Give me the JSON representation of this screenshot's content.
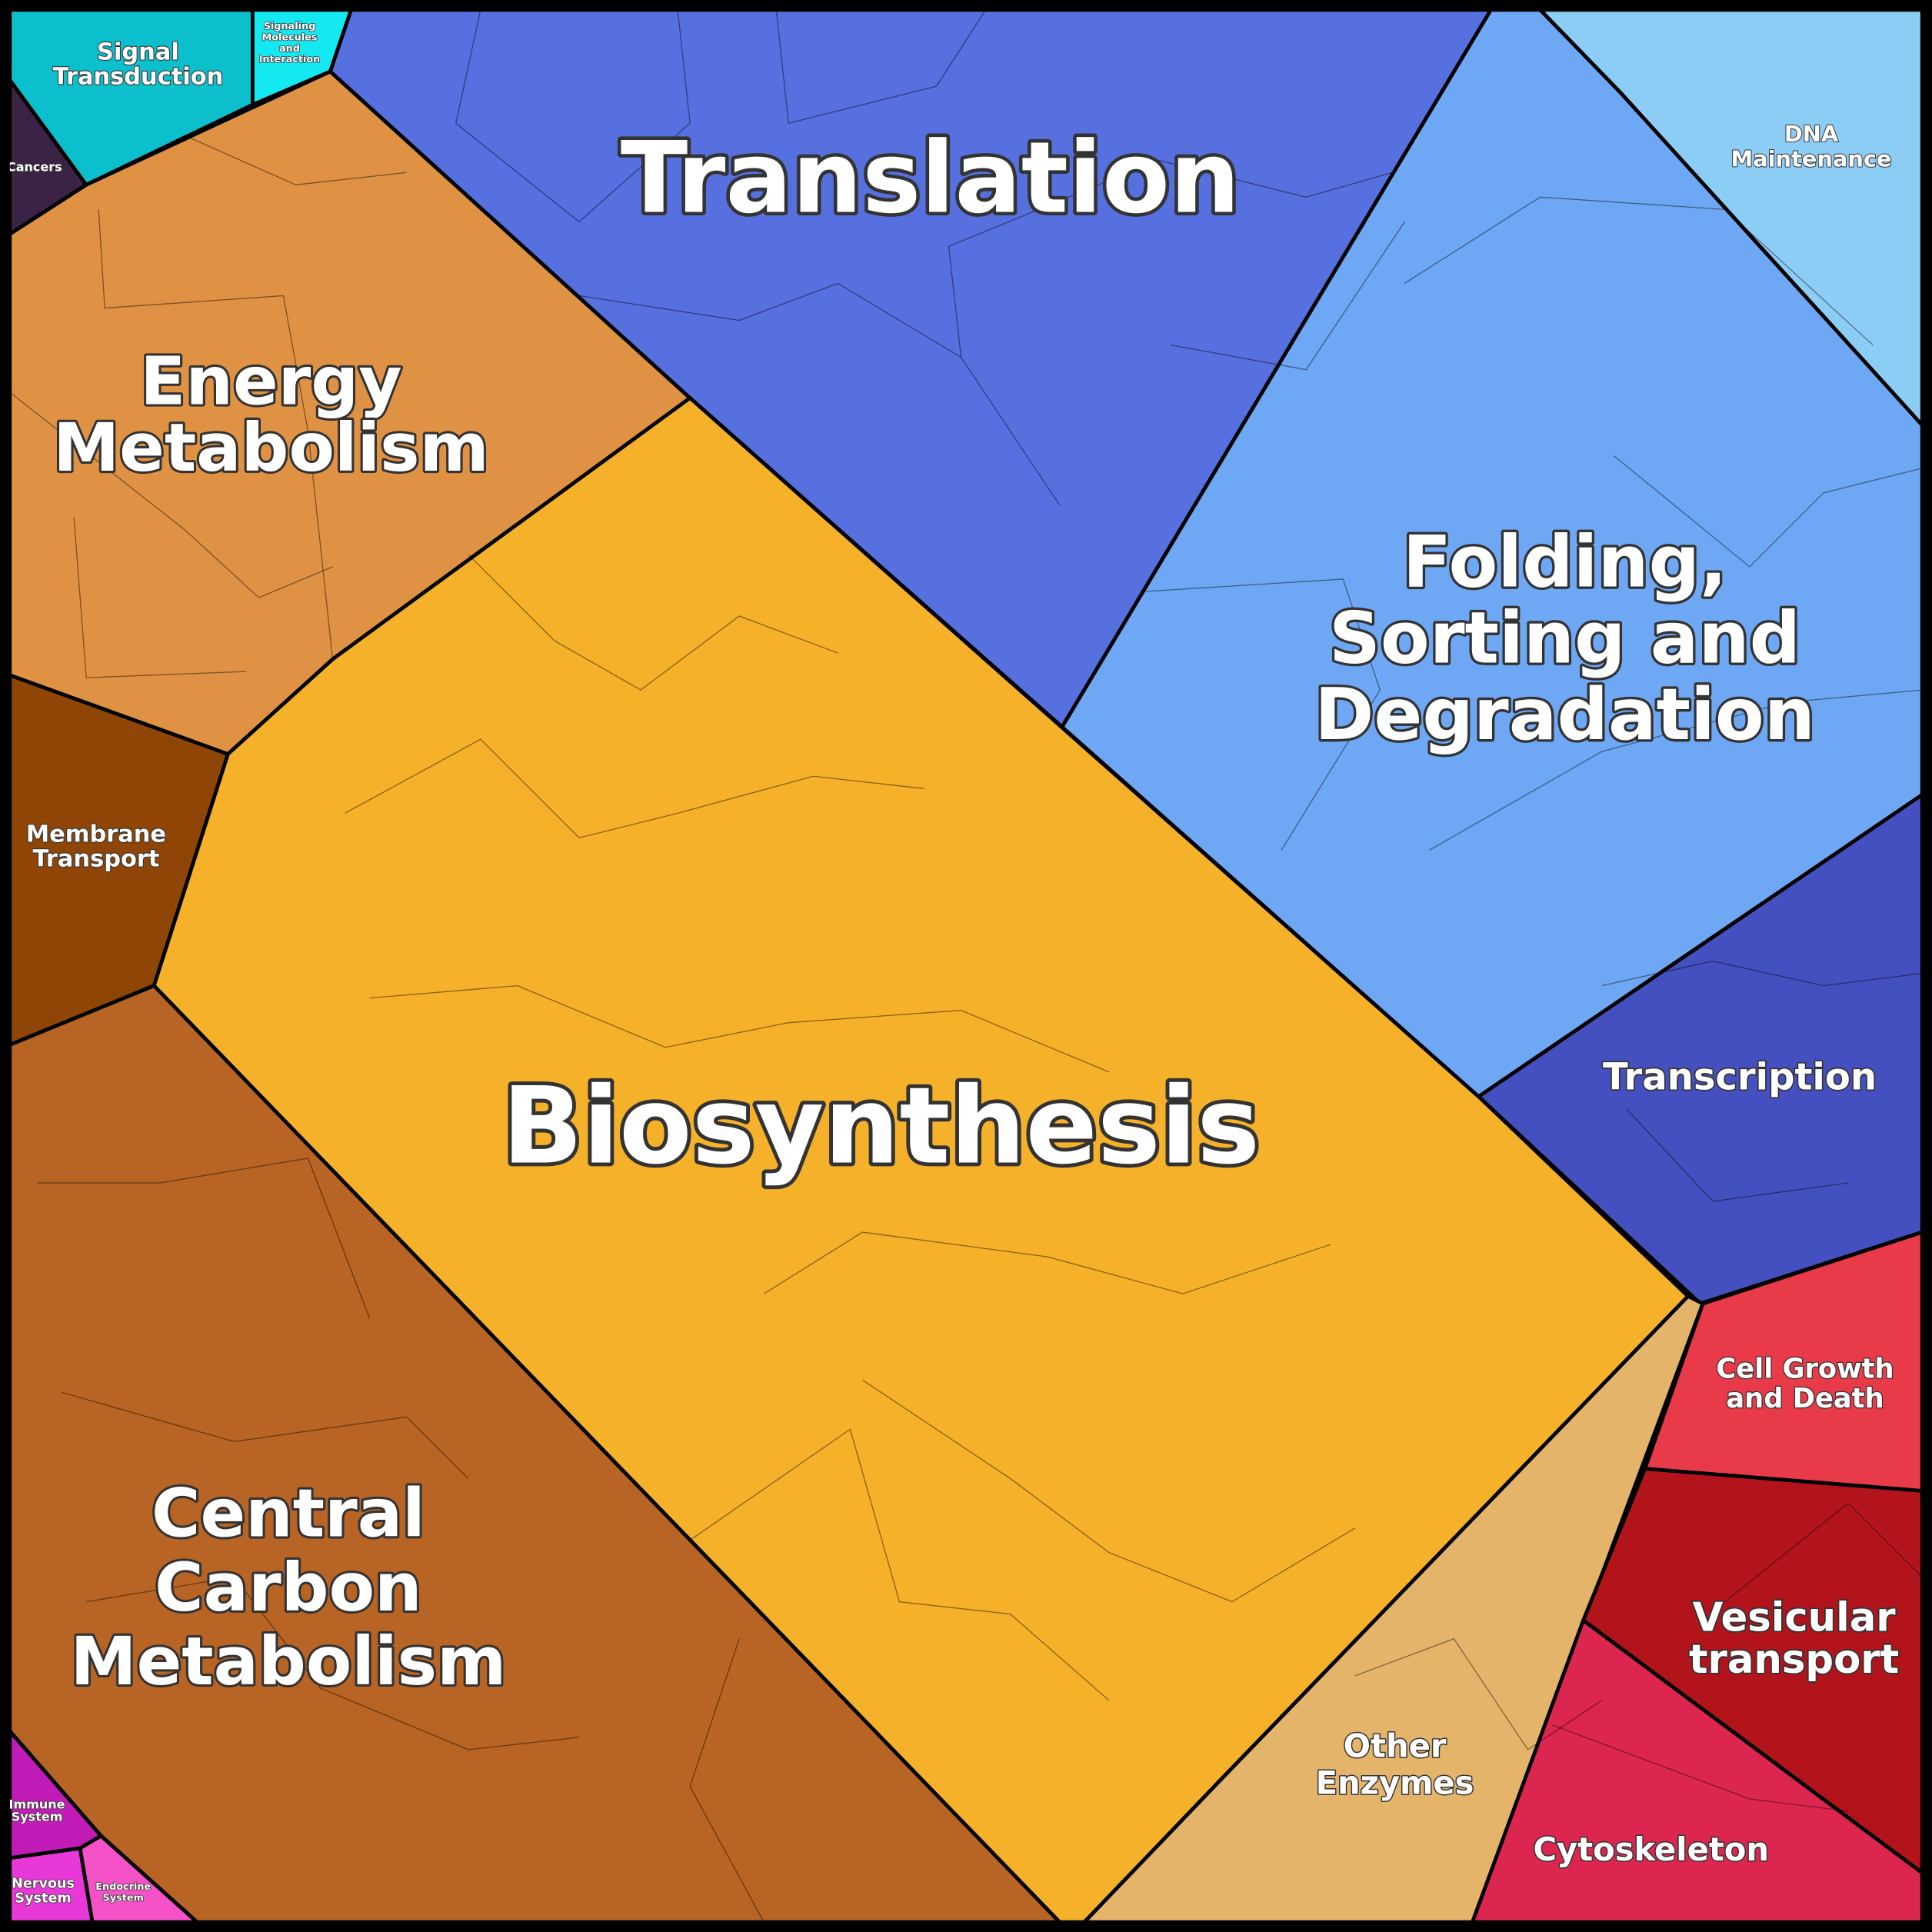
{
  "regions": [
    {
      "label": [
        "Signal",
        "Transduction"
      ]
    },
    {
      "label": [
        "Signaling",
        "Molecules",
        "and",
        "Interaction"
      ]
    },
    {
      "label": [
        "Cancers"
      ]
    },
    {
      "label": [
        "Energy",
        "Metabolism"
      ]
    },
    {
      "label": [
        "Membrane",
        "Transport"
      ]
    },
    {
      "label": [
        "Translation"
      ]
    },
    {
      "label": [
        "DNA",
        "Maintenance"
      ]
    },
    {
      "label": [
        "Folding,",
        "Sorting and",
        "Degradation"
      ]
    },
    {
      "label": [
        "Transcription"
      ]
    },
    {
      "label": [
        "Biosynthesis"
      ]
    },
    {
      "label": [
        "Central",
        "Carbon",
        "Metabolism"
      ]
    },
    {
      "label": [
        "Immune",
        "System"
      ]
    },
    {
      "label": [
        "Nervous",
        "System"
      ]
    },
    {
      "label": [
        "Endocrine",
        "System"
      ]
    },
    {
      "label": [
        "Other",
        "Enzymes"
      ]
    },
    {
      "label": [
        "Cell Growth",
        "and Death"
      ]
    },
    {
      "label": [
        "Vesicular",
        "transport"
      ]
    },
    {
      "label": [
        "Cytoskeleton"
      ]
    }
  ]
}
